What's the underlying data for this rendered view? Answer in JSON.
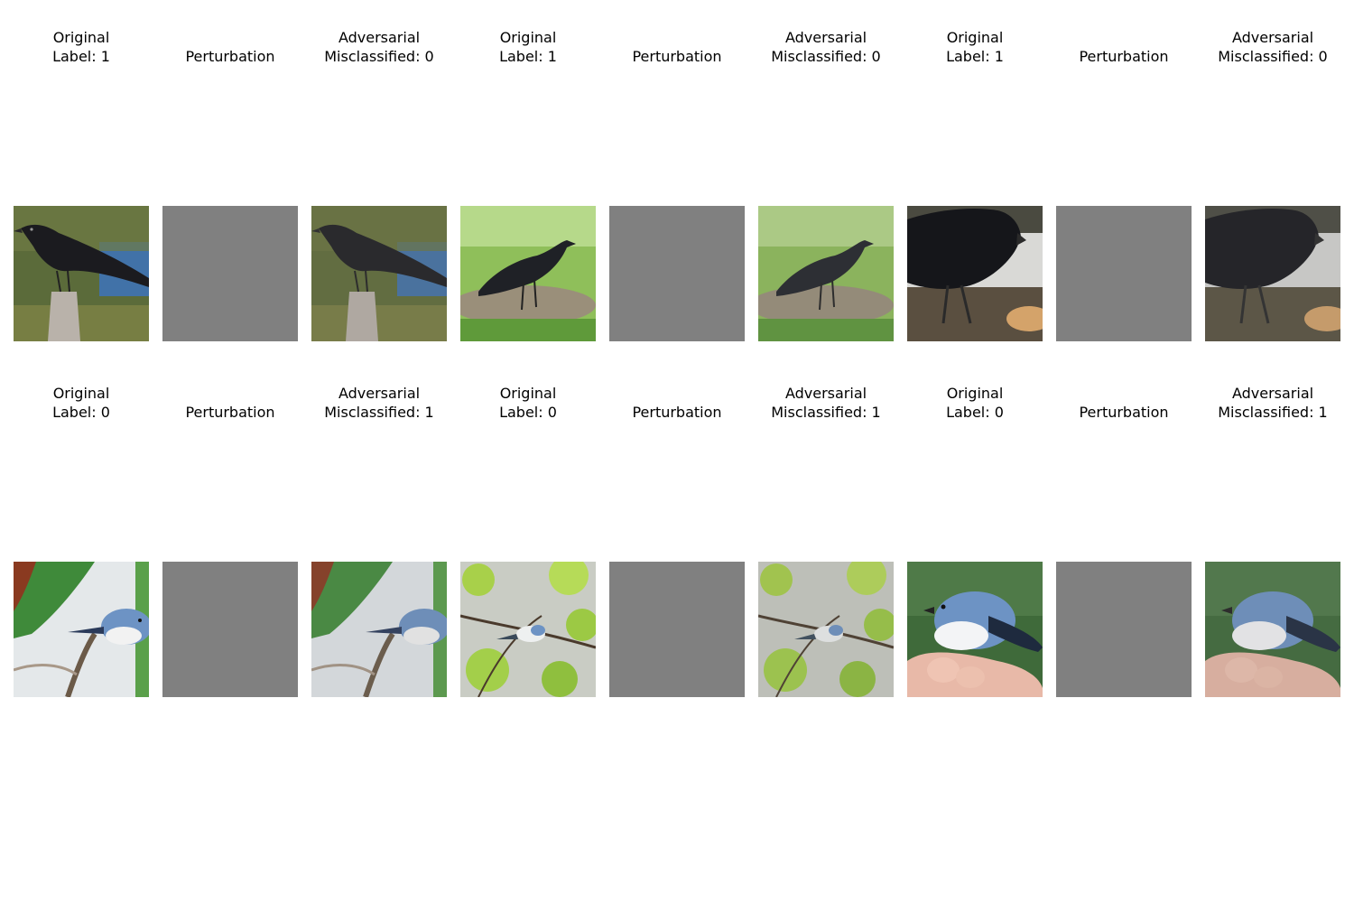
{
  "figure": {
    "rows": [
      {
        "groups": [
          {
            "original": {
              "title": "Original",
              "subtitle": "Label: 1"
            },
            "perturbation": {
              "title": "Perturbation"
            },
            "adversarial": {
              "title": "Adversarial",
              "subtitle": "Misclassified: 0"
            },
            "scene": "crow-on-post"
          },
          {
            "original": {
              "title": "Original",
              "subtitle": "Label: 1"
            },
            "perturbation": {
              "title": "Perturbation"
            },
            "adversarial": {
              "title": "Adversarial",
              "subtitle": "Misclassified: 0"
            },
            "scene": "crow-on-grass"
          },
          {
            "original": {
              "title": "Original",
              "subtitle": "Label: 1"
            },
            "perturbation": {
              "title": "Perturbation"
            },
            "adversarial": {
              "title": "Adversarial",
              "subtitle": "Misclassified: 0"
            },
            "scene": "crow-closeup"
          }
        ]
      },
      {
        "groups": [
          {
            "original": {
              "title": "Original",
              "subtitle": "Label: 0"
            },
            "perturbation": {
              "title": "Perturbation"
            },
            "adversarial": {
              "title": "Adversarial",
              "subtitle": "Misclassified: 1"
            },
            "scene": "warbler-on-branch"
          },
          {
            "original": {
              "title": "Original",
              "subtitle": "Label: 0"
            },
            "perturbation": {
              "title": "Perturbation"
            },
            "adversarial": {
              "title": "Adversarial",
              "subtitle": "Misclassified: 1"
            },
            "scene": "warbler-in-foliage"
          },
          {
            "original": {
              "title": "Original",
              "subtitle": "Label: 0"
            },
            "perturbation": {
              "title": "Perturbation"
            },
            "adversarial": {
              "title": "Adversarial",
              "subtitle": "Misclassified: 1"
            },
            "scene": "warbler-in-hand"
          }
        ]
      }
    ],
    "colors": {
      "background": "#ffffff",
      "perturbation_gray": "#808080",
      "crow_black": "#1b1b1f",
      "warbler_blue": "#6d93c4"
    }
  }
}
